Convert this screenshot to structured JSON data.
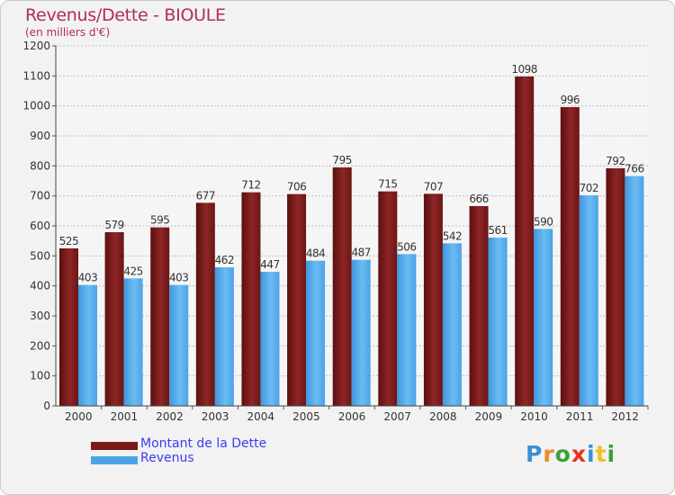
{
  "title": "Revenus/Dette - BIOULE",
  "subtitle": "(en milliers d'€)",
  "logo": {
    "text": "Proxiti",
    "letter_colors": [
      "#3a8fd8",
      "#f08a24",
      "#3aa03a",
      "#e8341c",
      "#3a8fd8",
      "#f0c020",
      "#3aa03a"
    ]
  },
  "chart_data": {
    "type": "bar",
    "categories": [
      "2000",
      "2001",
      "2002",
      "2003",
      "2004",
      "2005",
      "2006",
      "2007",
      "2008",
      "2009",
      "2010",
      "2011",
      "2012"
    ],
    "series": [
      {
        "name": "Montant de la Dette",
        "color": "#7a1a1a",
        "values": [
          525,
          579,
          595,
          677,
          712,
          706,
          795,
          715,
          707,
          666,
          1098,
          996,
          792
        ]
      },
      {
        "name": "Revenus",
        "color": "#4aa3e8",
        "values": [
          403,
          425,
          403,
          462,
          447,
          484,
          487,
          506,
          542,
          561,
          590,
          702,
          766
        ]
      }
    ],
    "ylim": [
      0,
      1200
    ],
    "yticks": [
      0,
      100,
      200,
      300,
      400,
      500,
      600,
      700,
      800,
      900,
      1000,
      1100,
      1200
    ],
    "grid": true,
    "legend": "bottom-left"
  }
}
